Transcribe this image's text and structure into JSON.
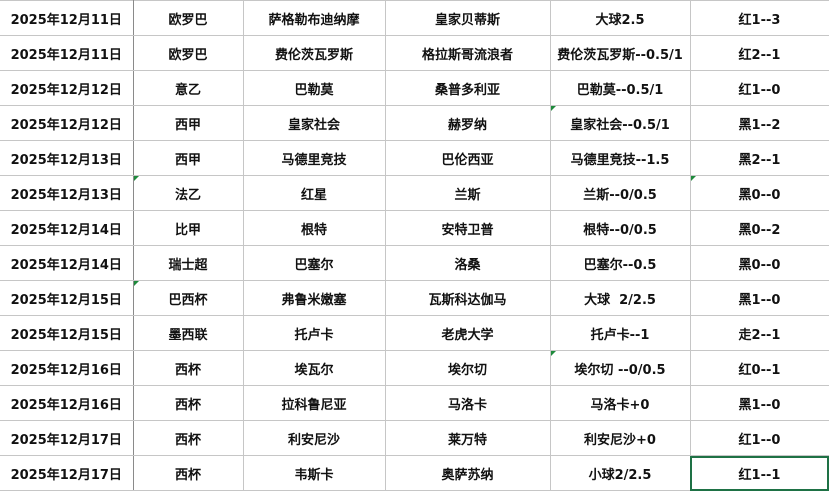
{
  "rows": [
    [
      "2025年12月11日",
      "欧罗巴",
      "萨格勒布迪纳摩",
      "皇家贝蒂斯",
      "大球2.5",
      "红1--3"
    ],
    [
      "2025年12月11日",
      "欧罗巴",
      "费伦茨瓦罗斯",
      "格拉斯哥流浪者",
      "费伦茨瓦罗斯--0.5/1",
      "红2--1"
    ],
    [
      "2025年12月12日",
      "意乙",
      "巴勒莫",
      "桑普多利亚",
      "巴勒莫--0.5/1",
      "红1--0"
    ],
    [
      "2025年12月12日",
      "西甲",
      "皇家社会",
      "赫罗纳",
      "皇家社会--0.5/1",
      "黑1--2"
    ],
    [
      "2025年12月13日",
      "西甲",
      "马德里竞技",
      "巴伦西亚",
      "马德里竞技--1.5",
      "黑2--1"
    ],
    [
      "2025年12月13日",
      "法乙",
      "红星",
      "兰斯",
      "兰斯--0/0.5",
      "黑0--0"
    ],
    [
      "2025年12月14日",
      "比甲",
      "根特",
      "安特卫普",
      "根特--0/0.5",
      "黑0--2"
    ],
    [
      "2025年12月14日",
      "瑞士超",
      "巴塞尔",
      "洛桑",
      "巴塞尔--0.5",
      "黑0--0"
    ],
    [
      "2025年12月15日",
      "巴西杯",
      "弗鲁米嫩塞",
      "瓦斯科达伽马",
      "大球  2/2.5",
      "黑1--0"
    ],
    [
      "2025年12月15日",
      "墨西联",
      "托卢卡",
      "老虎大学",
      "托卢卡--1",
      "走2--1"
    ],
    [
      "2025年12月16日",
      "西杯",
      "埃瓦尔",
      "埃尔切",
      "埃尔切 --0/0.5",
      "红0--1"
    ],
    [
      "2025年12月16日",
      "西杯",
      "拉科鲁尼亚",
      "马洛卡",
      "马洛卡+0",
      "黑1--0"
    ],
    [
      "2025年12月17日",
      "西杯",
      "利安尼沙",
      "莱万特",
      "利安尼沙+0",
      "红1--0"
    ],
    [
      "2025年12月17日",
      "西杯",
      "韦斯卡",
      "奥萨苏纳",
      "小球2/2.5",
      "红1--1"
    ]
  ]
}
